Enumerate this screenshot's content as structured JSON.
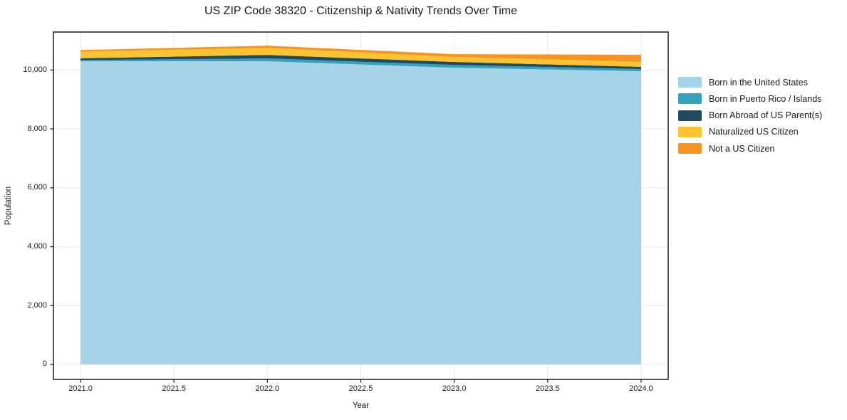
{
  "chart_data": {
    "type": "area",
    "stacked": true,
    "title": "US ZIP Code 38320 - Citizenship & Nativity Trends Over Time",
    "xlabel": "Year",
    "ylabel": "Population",
    "x": [
      2021,
      2022,
      2023,
      2024
    ],
    "series": [
      {
        "name": "Born in the United States",
        "color": "#a5d3e8",
        "values": [
          10300,
          10300,
          10080,
          9960
        ]
      },
      {
        "name": "Born in Puerto Rico / Islands",
        "color": "#35a2bd",
        "values": [
          40,
          95,
          95,
          75
        ]
      },
      {
        "name": "Born Abroad of US Parent(s)",
        "color": "#1f4a5e",
        "values": [
          60,
          120,
          100,
          75
        ]
      },
      {
        "name": "Naturalized US Citizen",
        "color": "#fcc330",
        "values": [
          225,
          240,
          170,
          170
        ]
      },
      {
        "name": "Not a US Citizen",
        "color": "#f79421",
        "values": [
          55,
          75,
          95,
          240
        ]
      }
    ],
    "totals": [
      10680,
      10830,
      10540,
      10520
    ],
    "xlim": [
      2020.855,
      2024.145
    ],
    "ylim": [
      -508,
      11292
    ],
    "xticks": {
      "values": [
        2021.0,
        2021.5,
        2022.0,
        2022.5,
        2023.0,
        2023.5,
        2024.0
      ],
      "labels": [
        "2021.0",
        "2021.5",
        "2022.0",
        "2022.5",
        "2023.0",
        "2023.5",
        "2024.0"
      ]
    },
    "yticks": {
      "values": [
        0,
        2000,
        4000,
        6000,
        8000,
        10000
      ],
      "labels": [
        "0",
        "2,000",
        "4,000",
        "6,000",
        "8,000",
        "10,000"
      ]
    },
    "grid": true,
    "legend_position": "right-outside"
  },
  "colors": {
    "background": "#ffffff",
    "spine": "#1a1a1a",
    "grid": "#e8e8e8",
    "tick": "#1a1a1a"
  }
}
